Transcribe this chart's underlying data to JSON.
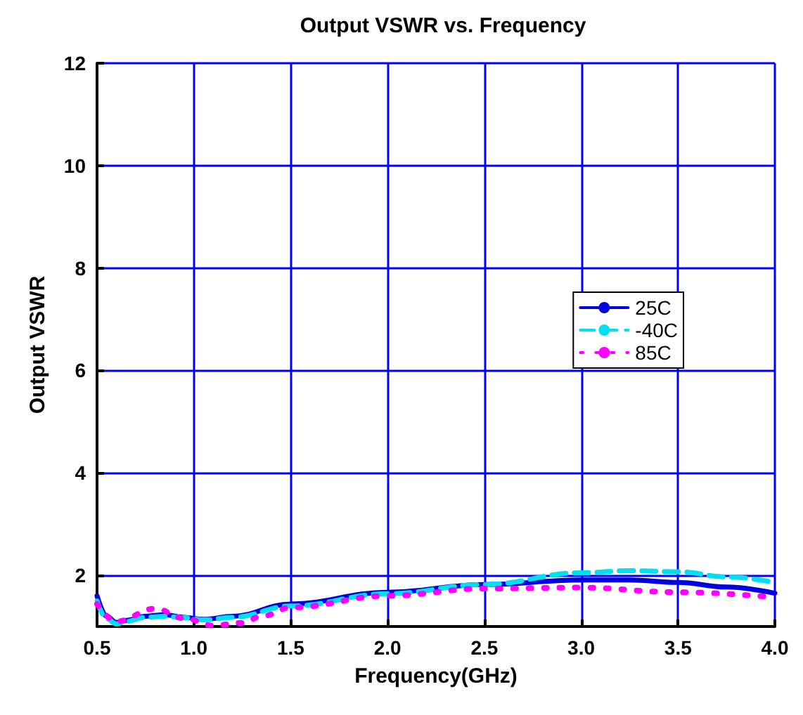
{
  "chart_data": {
    "type": "line",
    "title": "Output VSWR vs. Frequency",
    "xlabel": "Frequency(GHz)",
    "ylabel": "Output VSWR",
    "xlim": [
      0.5,
      4.0
    ],
    "xticks": [
      {
        "value": 0.5,
        "label": "0.5"
      },
      {
        "value": 1.0,
        "label": "1.0"
      },
      {
        "value": 1.5,
        "label": "1.5"
      },
      {
        "value": 2.0,
        "label": "2.0"
      },
      {
        "value": 2.5,
        "label": "2.5"
      },
      {
        "value": 3.0,
        "label": "3.0"
      },
      {
        "value": 3.5,
        "label": "3.5"
      },
      {
        "value": 4.0,
        "label": "4.0"
      }
    ],
    "ylim": [
      1,
      12
    ],
    "yticks": [
      2,
      4,
      6,
      8,
      10,
      12
    ],
    "grid": true,
    "legend": "right",
    "marker": "none",
    "series": [
      {
        "name": "25C",
        "color": "#0000e0",
        "line_style": "solid",
        "x": [
          0.5,
          0.55,
          0.6,
          0.65,
          0.75,
          0.85,
          0.95,
          1.05,
          1.2,
          1.5,
          2.0,
          2.5,
          3.0,
          3.25,
          3.5,
          3.75,
          4.0
        ],
        "values": [
          1.6,
          1.2,
          1.08,
          1.12,
          1.2,
          1.23,
          1.18,
          1.14,
          1.2,
          1.44,
          1.67,
          1.82,
          1.91,
          1.91,
          1.86,
          1.77,
          1.65
        ]
      },
      {
        "name": "-40C",
        "color": "#00e0f0",
        "line_style": "dashed",
        "x": [
          0.5,
          0.55,
          0.6,
          0.65,
          0.75,
          0.85,
          0.95,
          1.05,
          1.2,
          1.5,
          2.0,
          2.5,
          3.0,
          3.25,
          3.5,
          3.75,
          4.0
        ],
        "values": [
          1.5,
          1.15,
          1.05,
          1.1,
          1.18,
          1.2,
          1.17,
          1.13,
          1.18,
          1.4,
          1.64,
          1.82,
          2.05,
          2.09,
          2.07,
          1.97,
          1.86
        ]
      },
      {
        "name": "85C",
        "color": "#ff00ff",
        "line_style": "dotted",
        "x": [
          0.5,
          0.6,
          0.8,
          0.95,
          1.1,
          1.25,
          1.35,
          1.5,
          2.0,
          2.5,
          3.0,
          3.5,
          4.0
        ],
        "values": [
          1.44,
          1.1,
          1.35,
          1.16,
          1.02,
          1.07,
          1.2,
          1.37,
          1.6,
          1.74,
          1.76,
          1.67,
          1.57
        ]
      }
    ]
  }
}
